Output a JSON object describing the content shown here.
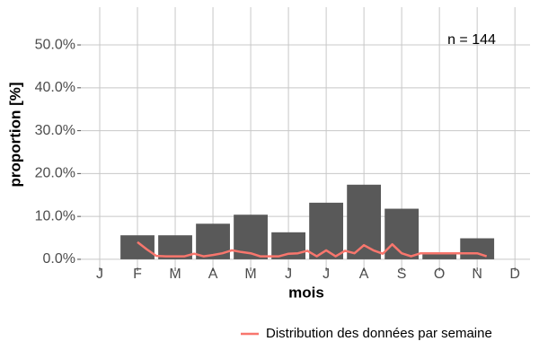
{
  "chart_data": {
    "type": "bar",
    "categories": [
      "J",
      "F",
      "M",
      "A",
      "M",
      "J",
      "J",
      "A",
      "S",
      "O",
      "N",
      "D"
    ],
    "values": [
      0,
      5.6,
      5.6,
      8.3,
      10.4,
      6.3,
      13.2,
      17.4,
      11.8,
      1.4,
      4.9,
      0
    ],
    "color": "#595959",
    "xlim": [
      -0.5,
      11.4
    ],
    "ylim": [
      -1.9,
      58.8
    ],
    "yticks": [
      {
        "value": 0,
        "label": "0.0%"
      },
      {
        "value": 10,
        "label": "10.0%"
      },
      {
        "value": 20,
        "label": "20.0%"
      },
      {
        "value": 30,
        "label": "30.0%"
      },
      {
        "value": 40,
        "label": "40.0%"
      },
      {
        "value": 50,
        "label": "50.0%"
      }
    ],
    "xlabel": "mois",
    "ylabel": "proportion [%]",
    "annotation": "n = 144",
    "grid": true,
    "legend": "bottom",
    "line": {
      "name": "Distribution des données par semaine",
      "color": "#f8766d",
      "x": [
        1,
        1.25,
        1.5,
        1.75,
        2,
        2.25,
        2.5,
        2.75,
        3,
        3.25,
        3.5,
        3.75,
        4,
        4.25,
        4.5,
        4.75,
        5,
        5.25,
        5.5,
        5.75,
        6,
        6.25,
        6.5,
        6.75,
        7,
        7.25,
        7.5,
        7.75,
        8,
        8.25,
        8.5,
        8.75,
        9,
        9.25,
        9.5,
        9.75,
        10,
        10.25
      ],
      "values": [
        4.0,
        2.3,
        0.8,
        0.7,
        0.7,
        0.7,
        1.3,
        0.7,
        1.0,
        1.4,
        2.1,
        1.7,
        1.4,
        0.7,
        0.7,
        0.7,
        1.3,
        1.4,
        2.0,
        0.7,
        2.1,
        0.7,
        2.0,
        1.4,
        3.3,
        2.1,
        1.3,
        3.5,
        1.4,
        0.7,
        1.4,
        1.4,
        1.4,
        1.4,
        1.4,
        1.4,
        1.4,
        0.7
      ]
    }
  }
}
